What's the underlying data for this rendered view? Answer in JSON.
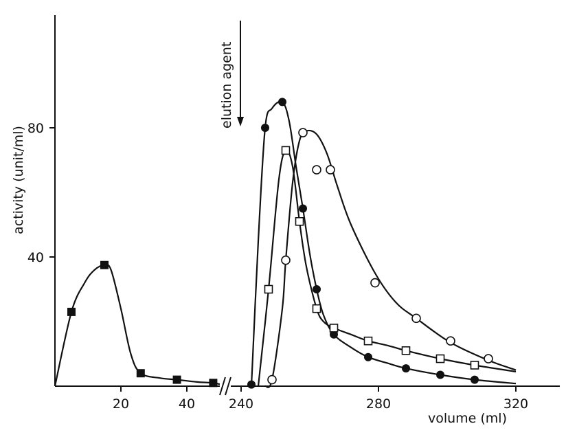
{
  "chart_data": {
    "type": "line",
    "title": "",
    "xlabel": "volume  (ml)",
    "ylabel": "activity (unit/ml)",
    "ylim": [
      0,
      100
    ],
    "x_ticks": [
      "20",
      "40",
      "240",
      "280",
      "320"
    ],
    "y_ticks": [
      "40",
      "80"
    ],
    "x_axis_broken": true,
    "x_segments": [
      [
        0,
        50
      ],
      [
        237,
        338
      ]
    ],
    "annotation": "elution agent",
    "annotation_x": 239,
    "grid": false,
    "legend": "none",
    "series": [
      {
        "marker": "filled-square",
        "points": [
          [
            5,
            23
          ],
          [
            15,
            37.5
          ],
          [
            26,
            4
          ],
          [
            37,
            2
          ],
          [
            48,
            1
          ]
        ],
        "curve": [
          [
            0,
            0
          ],
          [
            5,
            23
          ],
          [
            9,
            32
          ],
          [
            12,
            36
          ],
          [
            15,
            37.5
          ],
          [
            17,
            36
          ],
          [
            20,
            24
          ],
          [
            23,
            10
          ],
          [
            26,
            4
          ],
          [
            32,
            2.5
          ],
          [
            37,
            2
          ],
          [
            43,
            1.3
          ],
          [
            48,
            1
          ],
          [
            50,
            0.6
          ]
        ]
      },
      {
        "marker": "filled-circle",
        "points": [
          [
            243,
            0.5
          ],
          [
            247,
            80
          ],
          [
            252,
            88
          ],
          [
            258,
            55
          ],
          [
            262,
            30
          ],
          [
            267,
            16
          ],
          [
            277,
            9
          ],
          [
            288,
            5.5
          ],
          [
            298,
            3.5
          ],
          [
            308,
            2
          ]
        ],
        "curve": [
          [
            243,
            0
          ],
          [
            245,
            45
          ],
          [
            247,
            80
          ],
          [
            249,
            86
          ],
          [
            252,
            88
          ],
          [
            254,
            82
          ],
          [
            256,
            68
          ],
          [
            258,
            55
          ],
          [
            260,
            41
          ],
          [
            262,
            30
          ],
          [
            264,
            22
          ],
          [
            267,
            16
          ],
          [
            272,
            12
          ],
          [
            277,
            9
          ],
          [
            283,
            7
          ],
          [
            288,
            5.5
          ],
          [
            298,
            3.5
          ],
          [
            308,
            2
          ],
          [
            320,
            0.8
          ]
        ]
      },
      {
        "marker": "open-square",
        "points": [
          [
            248,
            30
          ],
          [
            253,
            73
          ],
          [
            257,
            51
          ],
          [
            262,
            24
          ],
          [
            267,
            18
          ],
          [
            277,
            14
          ],
          [
            288,
            11
          ],
          [
            298,
            8.5
          ],
          [
            308,
            6.5
          ]
        ],
        "curve": [
          [
            245,
            0
          ],
          [
            248,
            30
          ],
          [
            251,
            64
          ],
          [
            253,
            73
          ],
          [
            255,
            68
          ],
          [
            257,
            51
          ],
          [
            259,
            37
          ],
          [
            262,
            24
          ],
          [
            264,
            20
          ],
          [
            267,
            18
          ],
          [
            272,
            16
          ],
          [
            277,
            14
          ],
          [
            283,
            12.5
          ],
          [
            288,
            11
          ],
          [
            298,
            8.5
          ],
          [
            308,
            6.5
          ],
          [
            320,
            4.5
          ]
        ]
      },
      {
        "marker": "open-circle",
        "points": [
          [
            249,
            2
          ],
          [
            253,
            39
          ],
          [
            258,
            78.5
          ],
          [
            262,
            67
          ],
          [
            266,
            67
          ],
          [
            279,
            32
          ],
          [
            291,
            21
          ],
          [
            301,
            14
          ],
          [
            312,
            8.5
          ]
        ],
        "curve": [
          [
            247,
            0
          ],
          [
            249,
            2
          ],
          [
            252,
            24
          ],
          [
            253,
            39
          ],
          [
            255,
            63
          ],
          [
            257,
            76
          ],
          [
            259,
            79
          ],
          [
            262,
            78
          ],
          [
            265,
            72
          ],
          [
            268,
            62
          ],
          [
            272,
            50
          ],
          [
            279,
            35
          ],
          [
            285,
            26
          ],
          [
            291,
            21
          ],
          [
            301,
            13.5
          ],
          [
            312,
            8
          ],
          [
            320,
            5
          ]
        ]
      }
    ]
  }
}
